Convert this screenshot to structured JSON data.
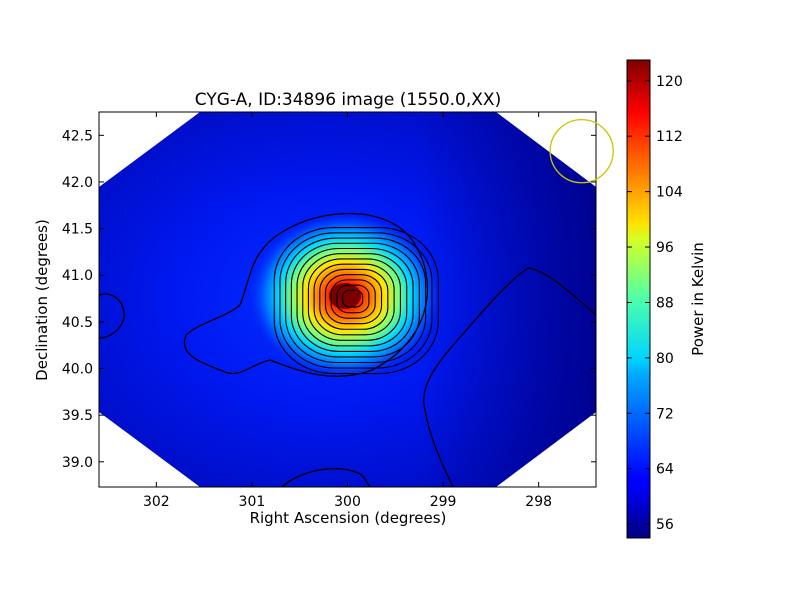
{
  "chart_data": {
    "type": "heatmap",
    "title": "CYG-A, ID:34896 image (1550.0,XX)",
    "xlabel": "Right Ascension (degrees)",
    "ylabel": "Declination (degrees)",
    "xlim": [
      302.6,
      297.4
    ],
    "ylim": [
      38.73,
      42.75
    ],
    "x_ticks": [
      302,
      301,
      300,
      299,
      298
    ],
    "x_tick_labels": [
      "302",
      "301",
      "300",
      "299",
      "298"
    ],
    "y_ticks": [
      39.0,
      39.5,
      40.0,
      40.5,
      41.0,
      41.5,
      42.0,
      42.5
    ],
    "y_tick_labels": [
      "39.0",
      "39.5",
      "40.0",
      "40.5",
      "41.0",
      "41.5",
      "42.0",
      "42.5"
    ],
    "colorbar": {
      "label": "Power in Kelvin",
      "range": [
        54,
        123
      ],
      "ticks": [
        56,
        64,
        72,
        80,
        88,
        96,
        104,
        112,
        120
      ],
      "tick_labels": [
        "56",
        "64",
        "72",
        "80",
        "88",
        "96",
        "104",
        "112",
        "120"
      ],
      "colormap": "jet"
    },
    "peak": {
      "ra": 299.95,
      "dec": 40.75,
      "value": 122
    },
    "background_level": 62,
    "contour_count": 14,
    "beam_circle": {
      "ra": 297.55,
      "dec": 42.33,
      "radius_deg": 0.33,
      "color": "#c8c800"
    }
  }
}
